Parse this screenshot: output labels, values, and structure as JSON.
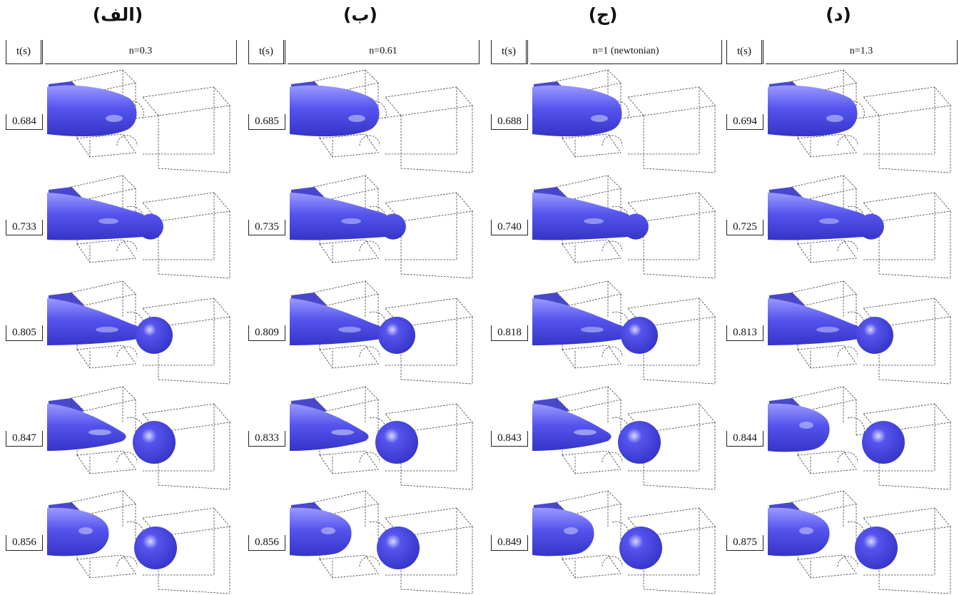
{
  "panels": [
    {
      "title": "(الف)",
      "t_header": "t(s)",
      "n_label": "n=0.3",
      "times": [
        "0.684",
        "0.733",
        "0.805",
        "0.847",
        "0.856"
      ]
    },
    {
      "title": "(ب)",
      "t_header": "t(s)",
      "n_label": "n=0.61",
      "times": [
        "0.685",
        "0.735",
        "0.809",
        "0.833",
        "0.856"
      ]
    },
    {
      "title": "(ج)",
      "t_header": "t(s)",
      "n_label": "n=1 (newtonian)",
      "times": [
        "0.688",
        "0.740",
        "0.818",
        "0.843",
        "0.849"
      ]
    },
    {
      "title": "(د)",
      "t_header": "t(s)",
      "n_label": "n=1.3",
      "times": [
        "0.694",
        "0.725",
        "0.813",
        "0.844",
        "0.875"
      ]
    }
  ],
  "colors": {
    "droplet": "#5555ee",
    "droplet_dark": "#3434c8",
    "droplet_light": "#9a9aff",
    "channel_lines": "#333333"
  }
}
